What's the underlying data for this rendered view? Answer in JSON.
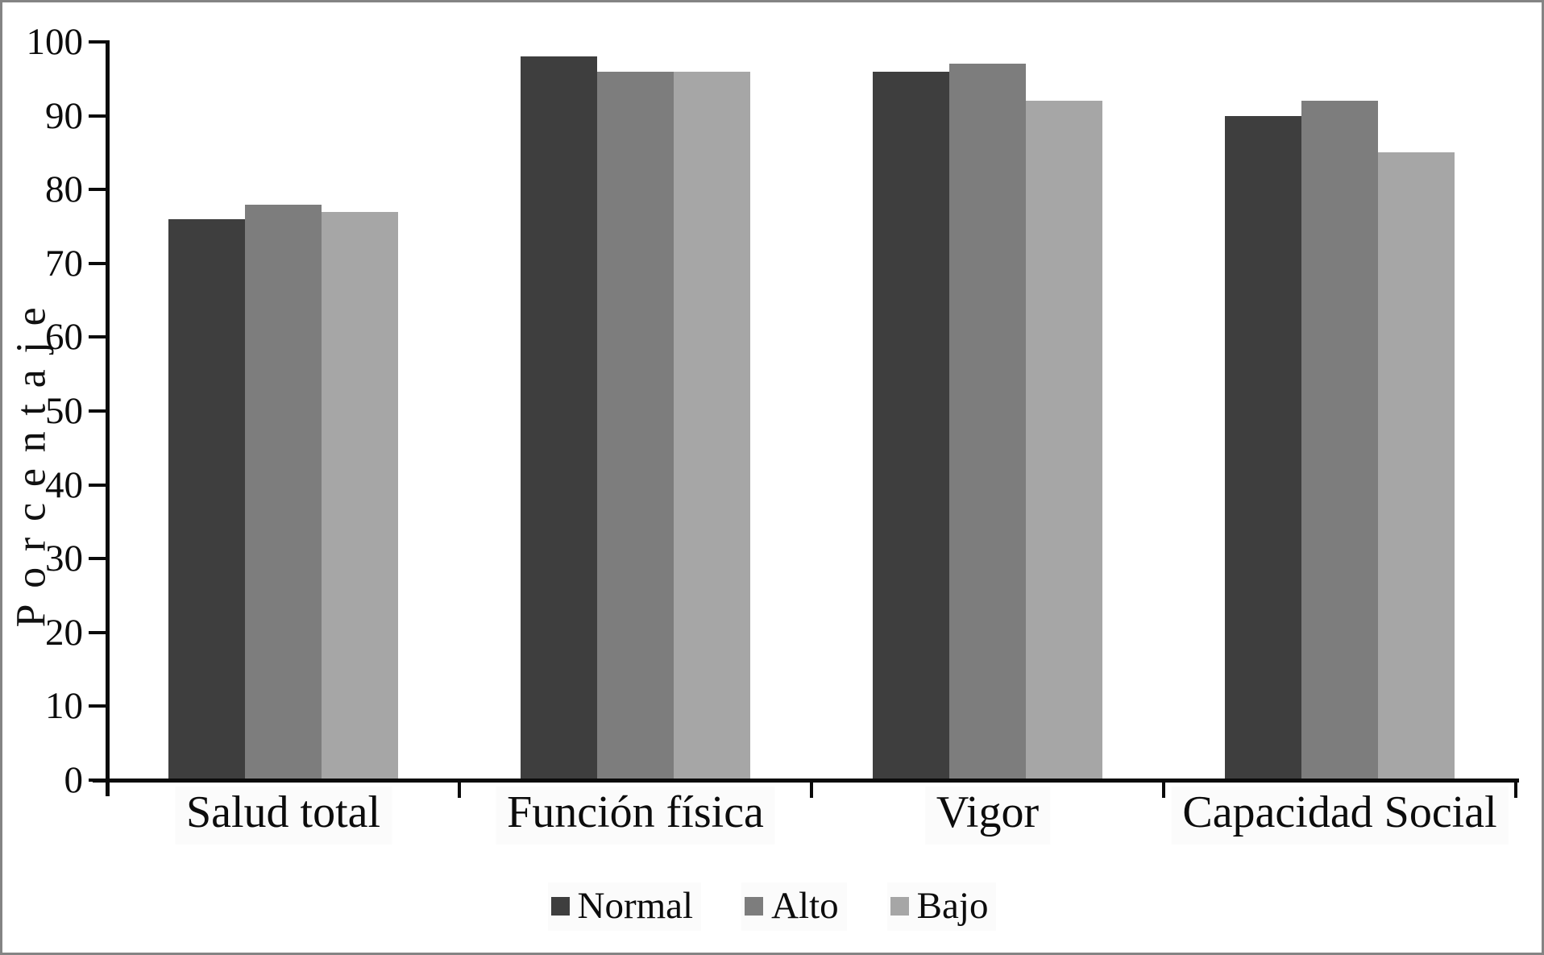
{
  "chart_data": {
    "type": "bar",
    "title": "",
    "ylabel": "Porcentaje",
    "xlabel": "",
    "ylim": [
      0,
      100
    ],
    "yticks": [
      0,
      10,
      20,
      30,
      40,
      50,
      60,
      70,
      80,
      90,
      100
    ],
    "grid": false,
    "legend_position": "bottom",
    "categories": [
      "Salud total",
      "Función física",
      "Vigor",
      "Capacidad Social"
    ],
    "series": [
      {
        "name": "Normal",
        "color": "#3e3e3e",
        "values": [
          76,
          98,
          96,
          90
        ]
      },
      {
        "name": "Alto",
        "color": "#7d7d7d",
        "values": [
          78,
          96,
          97,
          92
        ]
      },
      {
        "name": "Bajo",
        "color": "#a6a6a6",
        "values": [
          77,
          96,
          92,
          85
        ]
      }
    ],
    "axis_color": "#0b0b0b",
    "frame_border_color": "#848484"
  }
}
